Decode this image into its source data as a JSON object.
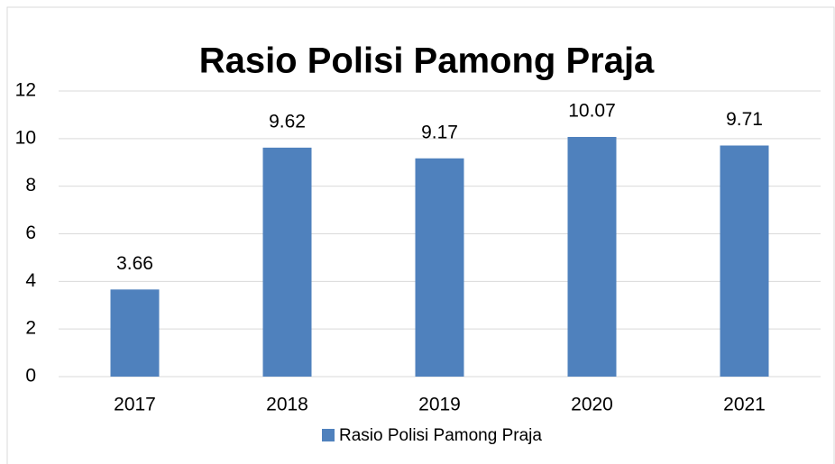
{
  "chart_data": {
    "type": "bar",
    "title": "Rasio Polisi Pamong Praja",
    "categories": [
      "2017",
      "2018",
      "2019",
      "2020",
      "2021"
    ],
    "series": [
      {
        "name": "Rasio Polisi Pamong Praja",
        "color": "#4f81bd",
        "values": [
          3.66,
          9.62,
          9.17,
          10.07,
          9.71
        ]
      }
    ],
    "ylim": [
      0,
      12
    ],
    "yticks": [
      0,
      2,
      4,
      6,
      8,
      10,
      12
    ],
    "grid": true,
    "legend": "bottom",
    "data_labels": true
  }
}
